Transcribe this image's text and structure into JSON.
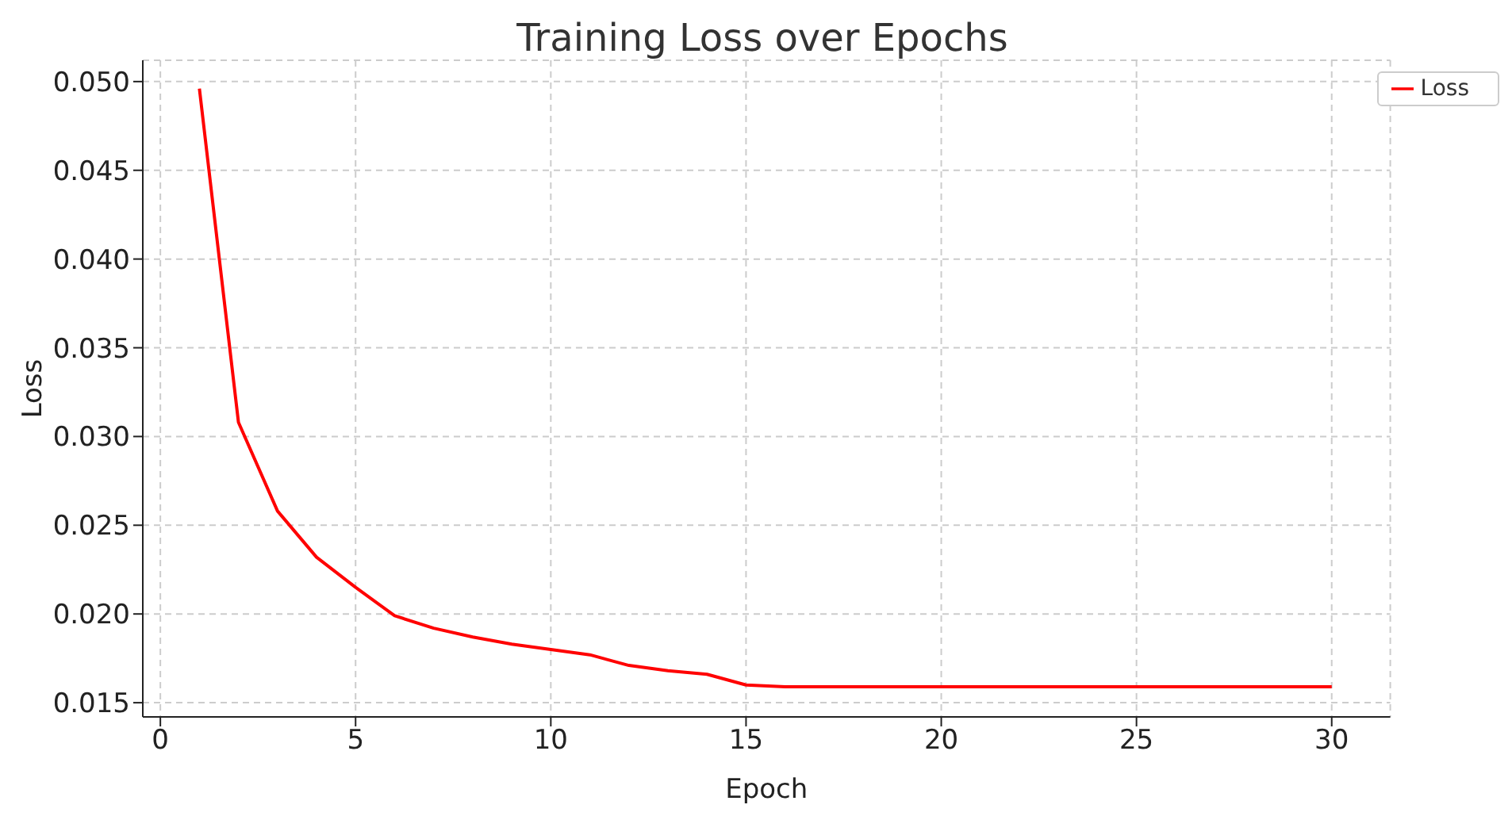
{
  "chart_data": {
    "type": "line",
    "title": "Training Loss over Epochs",
    "xlabel": "Epoch",
    "ylabel": "Loss",
    "x": [
      1,
      2,
      3,
      4,
      5,
      6,
      7,
      8,
      9,
      10,
      11,
      12,
      13,
      14,
      15,
      16,
      17,
      18,
      19,
      20,
      21,
      22,
      23,
      24,
      25,
      26,
      27,
      28,
      29,
      30
    ],
    "series": [
      {
        "name": "Loss",
        "color": "#ff0000",
        "values": [
          0.0496,
          0.0308,
          0.0258,
          0.0232,
          0.0215,
          0.0199,
          0.0192,
          0.0187,
          0.0183,
          0.018,
          0.0177,
          0.0171,
          0.0168,
          0.0166,
          0.016,
          0.0159,
          0.0159,
          0.0159,
          0.0159,
          0.0159,
          0.0159,
          0.0159,
          0.0159,
          0.0159,
          0.0159,
          0.0159,
          0.0159,
          0.0159,
          0.0159,
          0.0159
        ]
      }
    ],
    "xlim": [
      -0.45,
      31.5
    ],
    "xticks": [
      0,
      5,
      10,
      15,
      20,
      25,
      30
    ],
    "ylim": [
      0.0142,
      0.0512
    ],
    "yticks": [
      {
        "value": 0.015,
        "label": "0.015"
      },
      {
        "value": 0.02,
        "label": "0.020"
      },
      {
        "value": 0.025,
        "label": "0.025"
      },
      {
        "value": 0.03,
        "label": "0.030"
      },
      {
        "value": 0.035,
        "label": "0.035"
      },
      {
        "value": 0.04,
        "label": "0.040"
      },
      {
        "value": 0.045,
        "label": "0.045"
      },
      {
        "value": 0.05,
        "label": "0.050"
      }
    ],
    "grid": true,
    "legend": "top right",
    "marker": "none",
    "line_style": "solid"
  }
}
